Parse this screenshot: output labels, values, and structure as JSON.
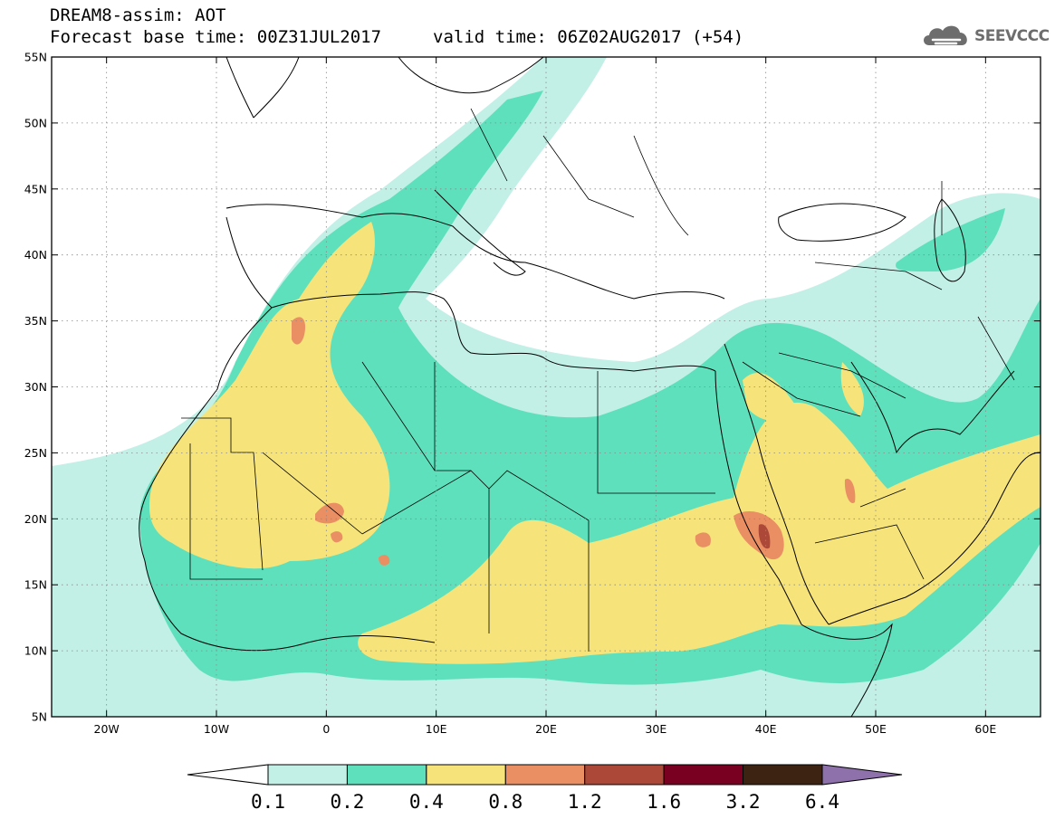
{
  "header": {
    "title": "DREAM8-assim: AOT",
    "base_time": "Forecast base time: 00Z31JUL2017",
    "valid_time": "valid time: 06Z02AUG2017 (+54)"
  },
  "logo": {
    "text": "SEEVCCC",
    "icon": "cloud-icon",
    "color": "#6d6d6d"
  },
  "map": {
    "lon_range": [
      -25,
      65
    ],
    "lat_range": [
      5,
      55
    ],
    "lon_ticks": [
      {
        "lon": -20,
        "label": "20W"
      },
      {
        "lon": -10,
        "label": "10W"
      },
      {
        "lon": 0,
        "label": "0"
      },
      {
        "lon": 10,
        "label": "10E"
      },
      {
        "lon": 20,
        "label": "20E"
      },
      {
        "lon": 30,
        "label": "30E"
      },
      {
        "lon": 40,
        "label": "40E"
      },
      {
        "lon": 50,
        "label": "50E"
      },
      {
        "lon": 60,
        "label": "60E"
      }
    ],
    "lat_ticks": [
      {
        "lat": 55,
        "label": "55N"
      },
      {
        "lat": 50,
        "label": "50N"
      },
      {
        "lat": 45,
        "label": "45N"
      },
      {
        "lat": 40,
        "label": "40N"
      },
      {
        "lat": 35,
        "label": "35N"
      },
      {
        "lat": 30,
        "label": "30N"
      },
      {
        "lat": 25,
        "label": "25N"
      },
      {
        "lat": 20,
        "label": "20N"
      },
      {
        "lat": 15,
        "label": "15N"
      },
      {
        "lat": 10,
        "label": "10N"
      },
      {
        "lat": 5,
        "label": "5N"
      }
    ],
    "grid": true
  },
  "colorbar": {
    "labels": [
      "0.1",
      "0.2",
      "0.4",
      "0.8",
      "1.2",
      "1.6",
      "3.2",
      "6.4"
    ],
    "colors": [
      "#ffffff",
      "#c2f0e6",
      "#5ee0bc",
      "#f6e47a",
      "#ea8f64",
      "#ab4837",
      "#7a0022",
      "#3d2412",
      "#8e70ab"
    ]
  }
}
